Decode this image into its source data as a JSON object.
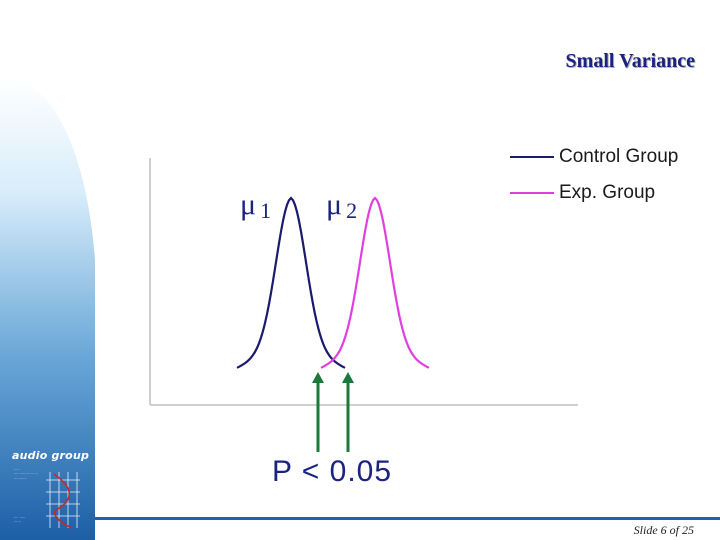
{
  "slide": {
    "title": "Small Variance",
    "footer": "Slide 6 of 25"
  },
  "logo": {
    "name": "audio group",
    "lines_top": [
      "·····",
      "···· ········· ······",
      "···········"
    ],
    "lines_bottom": [
      "···· ·····",
      "······"
    ]
  },
  "diagram": {
    "mu1": {
      "symbol": "μ",
      "sub": "1"
    },
    "mu2": {
      "symbol": "μ",
      "sub": "2"
    },
    "legend": [
      {
        "label": "Control Group",
        "color": "#1a1a6e"
      },
      {
        "label": "Exp. Group",
        "color": "#e040e0"
      }
    ],
    "annotation": "P < 0.05",
    "colors": {
      "axis": "#cfcfcf",
      "arrow": "#1b7a3a",
      "control": "#1a1a6e",
      "exp": "#e040e0",
      "accent": "#1565c0"
    }
  }
}
